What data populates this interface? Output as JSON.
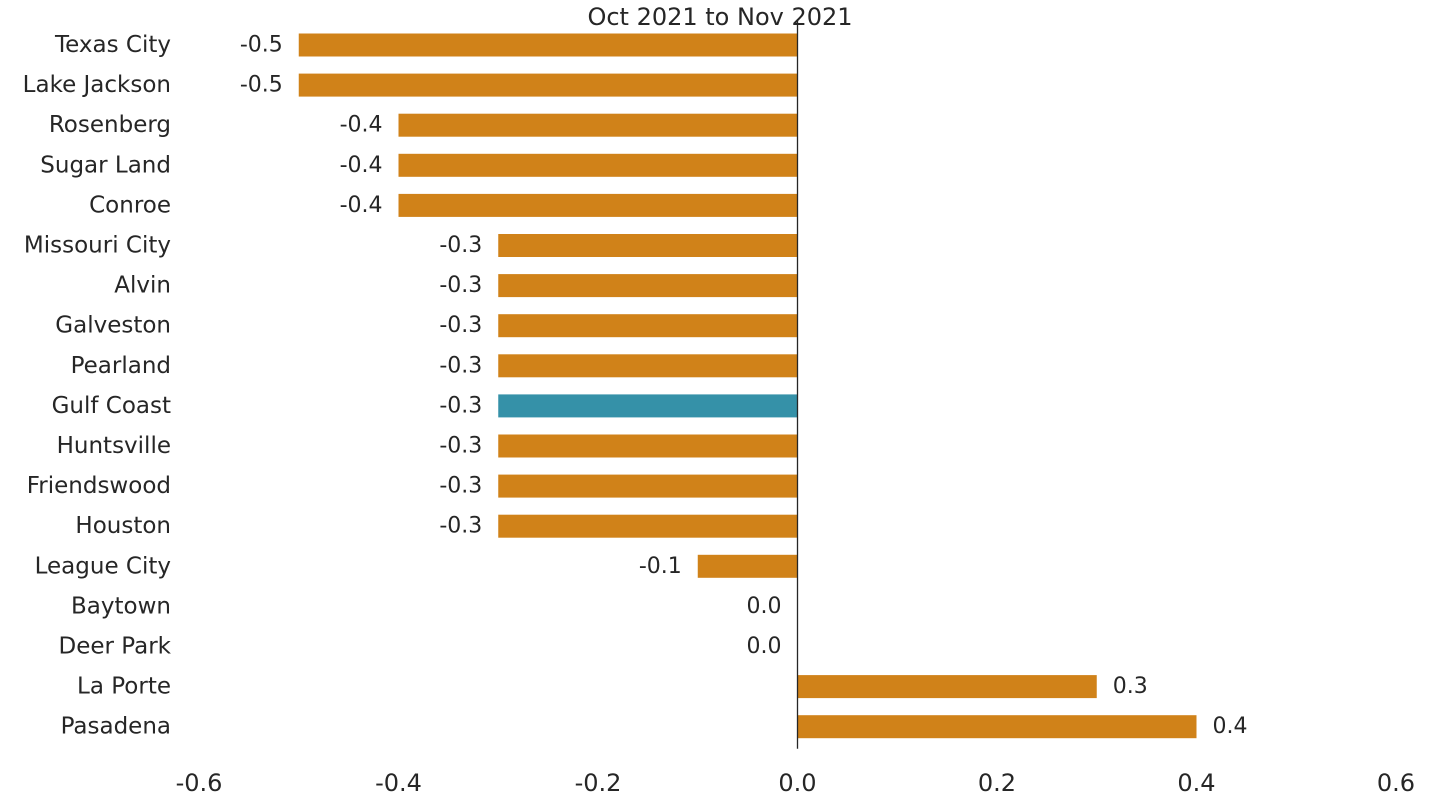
{
  "chart_data": {
    "type": "bar",
    "orientation": "horizontal",
    "title": "Oct 2021 to Nov 2021",
    "xlabel": "",
    "ylabel": "",
    "xlim": [
      -0.6,
      0.6
    ],
    "x_ticks": [
      "-0.6",
      "-0.4",
      "-0.2",
      "0.0",
      "0.2",
      "0.4",
      "0.6"
    ],
    "x_tick_values": [
      -0.6,
      -0.4,
      -0.2,
      0.0,
      0.2,
      0.4,
      0.6
    ],
    "grid": false,
    "categories": [
      "Texas City",
      "Lake Jackson",
      "Rosenberg",
      "Sugar Land",
      "Conroe",
      "Missouri City",
      "Alvin",
      "Galveston",
      "Pearland",
      "Gulf Coast",
      "Huntsville",
      "Friendswood",
      "Houston",
      "League City",
      "Baytown",
      "Deer Park",
      "La Porte",
      "Pasadena"
    ],
    "values": [
      -0.5,
      -0.5,
      -0.4,
      -0.4,
      -0.4,
      -0.3,
      -0.3,
      -0.3,
      -0.3,
      -0.3,
      -0.3,
      -0.3,
      -0.3,
      -0.1,
      0.0,
      0.0,
      0.3,
      0.4
    ],
    "data_labels": [
      "-0.5",
      "-0.5",
      "-0.4",
      "-0.4",
      "-0.4",
      "-0.3",
      "-0.3",
      "-0.3",
      "-0.3",
      "-0.3",
      "-0.3",
      "-0.3",
      "-0.3",
      "-0.1",
      "0.0",
      "0.0",
      "0.3",
      "0.4"
    ],
    "colors": {
      "default": "#D08219",
      "highlight": "#3591A8",
      "axis": "#262626"
    },
    "highlight_category": "Gulf Coast"
  }
}
